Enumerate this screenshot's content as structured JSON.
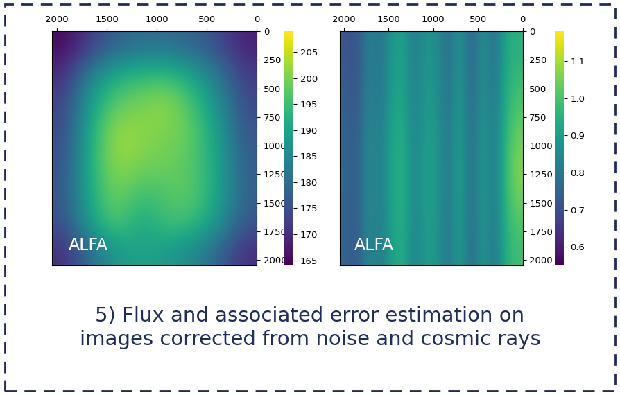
{
  "chart_data": [
    {
      "type": "heatmap",
      "annotation": "ALFA",
      "xlim": [
        2048,
        0
      ],
      "ylim": [
        2048,
        0
      ],
      "xticks": [
        2000,
        1500,
        1000,
        500,
        0
      ],
      "yticks": [
        0,
        250,
        500,
        750,
        1000,
        1250,
        1500,
        1750,
        2000
      ],
      "cells": [
        [
          170,
          180,
          188,
          190,
          188,
          185,
          178,
          170
        ],
        [
          175,
          190,
          198,
          190,
          196,
          195,
          188,
          176
        ],
        [
          176,
          192,
          200,
          195,
          197,
          198,
          190,
          178
        ],
        [
          175,
          193,
          202,
          200,
          199,
          197,
          190,
          177
        ],
        [
          174,
          192,
          203,
          201,
          200,
          198,
          189,
          176
        ],
        [
          173,
          190,
          198,
          200,
          202,
          196,
          186,
          174
        ],
        [
          170,
          184,
          192,
          194,
          195,
          190,
          182,
          172
        ],
        [
          165,
          172,
          178,
          180,
          180,
          178,
          174,
          168
        ]
      ],
      "color_range": [
        164,
        209
      ],
      "color_ticks": [
        165,
        170,
        175,
        180,
        185,
        190,
        195,
        200,
        205
      ]
    },
    {
      "type": "heatmap",
      "annotation": "ALFA",
      "xlim": [
        2048,
        0
      ],
      "ylim": [
        2048,
        0
      ],
      "xticks": [
        2000,
        1500,
        1000,
        500,
        0
      ],
      "yticks": [
        0,
        250,
        500,
        750,
        1000,
        1250,
        1500,
        1750,
        2000
      ],
      "cells": [
        [
          0.75,
          0.72,
          0.85,
          0.8,
          0.9,
          0.95,
          0.82,
          0.9,
          0.88,
          0.78,
          0.92,
          0.75,
          0.9,
          0.78,
          0.95,
          0.98
        ],
        [
          0.76,
          0.73,
          0.86,
          0.81,
          0.92,
          0.97,
          0.83,
          0.91,
          0.89,
          0.79,
          0.93,
          0.76,
          0.91,
          0.8,
          0.98,
          1.08
        ],
        [
          0.75,
          0.72,
          0.85,
          0.8,
          0.91,
          0.94,
          0.82,
          0.9,
          0.88,
          0.78,
          0.92,
          0.75,
          0.9,
          0.79,
          0.96,
          1.02
        ],
        [
          0.72,
          0.7,
          0.83,
          0.78,
          0.88,
          0.92,
          0.8,
          0.88,
          0.86,
          0.76,
          0.9,
          0.73,
          0.88,
          0.77,
          0.93,
          0.95
        ]
      ],
      "color_range": [
        0.55,
        1.18
      ],
      "color_ticks": [
        {
          "value": 0.6,
          "label": "0.6"
        },
        {
          "value": 0.7,
          "label": "0.7"
        },
        {
          "value": 0.8,
          "label": "0.8"
        },
        {
          "value": 0.9,
          "label": "0.9"
        },
        {
          "value": 1.0,
          "label": "1.0"
        },
        {
          "value": 1.1,
          "label": "1.1"
        }
      ]
    }
  ],
  "caption": "5) Flux and associated error estimation on\nimages corrected from noise and cosmic rays"
}
